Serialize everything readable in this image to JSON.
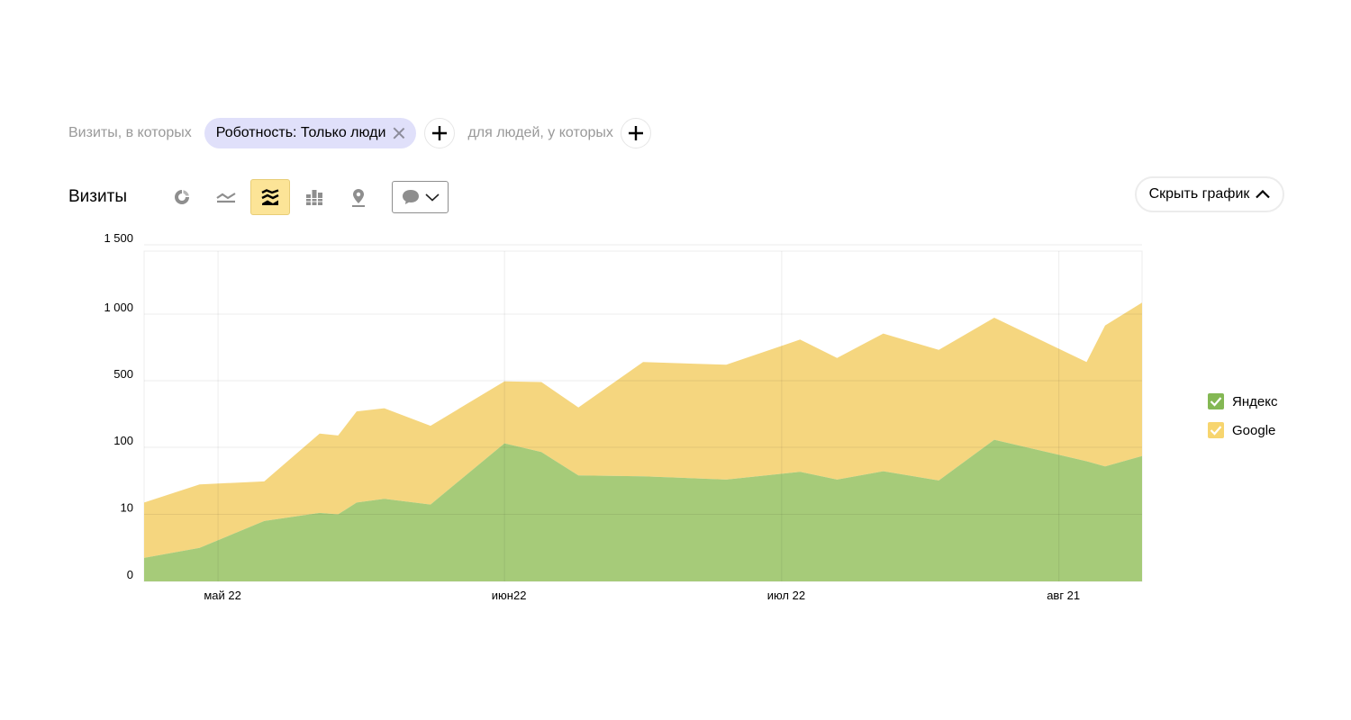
{
  "filters": {
    "visits_prefix": "Визиты, в которых",
    "chip_label": "Роботность: Только люди",
    "people_prefix": "для людей, у которых"
  },
  "toolbar": {
    "metric_title": "Визиты",
    "chart_types": [
      {
        "icon": "pie-chart-icon",
        "active": false
      },
      {
        "icon": "line-chart-icon",
        "active": false
      },
      {
        "icon": "stacked-area-chart-icon",
        "active": true
      },
      {
        "icon": "bar-chart-icon",
        "active": false
      },
      {
        "icon": "map-pin-icon",
        "active": false
      }
    ],
    "comments_icon": "comment-icon"
  },
  "hide_chart_label": "Скрыть график",
  "colors": {
    "yandex": "#a6cb79",
    "google": "#f5d67f",
    "legend_yandex": "#84b854",
    "legend_google": "#f7d56f",
    "active_tool": "#fce497",
    "chip_bg": "#e0e0fa"
  },
  "chart_data": {
    "type": "area",
    "stacked": true,
    "y_scale": "log",
    "y_ticks": [
      0,
      10,
      100,
      500,
      1000,
      1500
    ],
    "y_tick_labels": [
      "0",
      "10",
      "100",
      "500",
      "1 000",
      "1 500"
    ],
    "ylim": [
      0,
      1500
    ],
    "x_ticks": [
      {
        "label": "май 22",
        "date": "2021-05-22"
      },
      {
        "label": "июн22",
        "date": "2021-06-22"
      },
      {
        "label": "июл 22",
        "date": "2021-07-22"
      },
      {
        "label": "авг 21",
        "date": "2021-08-21"
      }
    ],
    "x": [
      "2021-05-14",
      "2021-05-20",
      "2021-05-27",
      "2021-06-02",
      "2021-06-04",
      "2021-06-06",
      "2021-06-09",
      "2021-06-14",
      "2021-06-22",
      "2021-06-26",
      "2021-06-30",
      "2021-07-07",
      "2021-07-16",
      "2021-07-24",
      "2021-07-28",
      "2021-08-02",
      "2021-08-08",
      "2021-08-14",
      "2021-08-24",
      "2021-08-26",
      "2021-08-30"
    ],
    "series": [
      {
        "name": "Яндекс",
        "values": [
          3.5,
          5,
          9,
          10.5,
          10,
          15,
          17,
          14,
          110,
          85,
          38,
          37,
          33,
          43,
          33,
          44,
          32,
          120,
          62,
          52,
          74
        ]
      },
      {
        "name": "Google",
        "values": [
          11.5,
          23,
          22,
          129,
          123,
          223,
          240,
          154,
          382,
          399,
          224,
          570,
          557,
          724,
          601,
          773,
          657,
          843,
          545,
          837,
          995
        ]
      }
    ],
    "legend_position": "right",
    "grid": true
  }
}
